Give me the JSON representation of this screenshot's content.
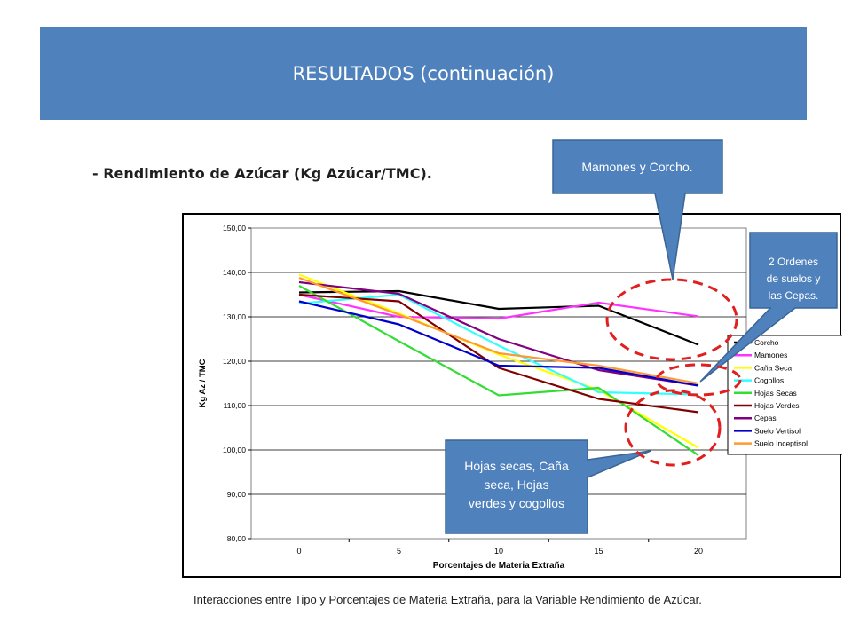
{
  "header": {
    "title": "RESULTADOS (continuación)"
  },
  "subtitle": "- Rendimiento de Azúcar (Kg Azúcar/TMC).",
  "caption": "Interacciones entre Tipo y Porcentajes de Materia Extraña, para la Variable Rendimiento de Azúcar.",
  "callouts": {
    "mamones": "Mamones y Corcho.",
    "ordenes": [
      "2 Ordenes",
      "de suelos y",
      "las Cepas."
    ],
    "hojas": [
      "Hojas secas, Caña",
      "seca, Hojas",
      "verdes y cogollos"
    ]
  },
  "colors": {
    "banner": "#4f81bd",
    "callout": "#4f81bd",
    "circle": "#e02020"
  },
  "chart_data": {
    "type": "line",
    "xlabel": "Porcentajes de Materia Extraña",
    "ylabel": "Kg Az / TMC",
    "x": [
      0,
      5,
      10,
      15,
      20
    ],
    "xticks": [
      "0",
      "5",
      "10",
      "15",
      "20"
    ],
    "ylim": [
      80,
      150
    ],
    "yticks": [
      "80,00",
      "90,00",
      "100,00",
      "110,00",
      "120,00",
      "130,00",
      "140,00",
      "150,00"
    ],
    "grid": true,
    "legend_position": "right",
    "series": [
      {
        "name": "Corcho",
        "color": "#000000",
        "values": [
          135.5,
          135.8,
          131.8,
          132.5,
          123.7
        ]
      },
      {
        "name": "Mamones",
        "color": "#ff33ff",
        "values": [
          135.0,
          130.0,
          129.6,
          133.2,
          130.1
        ]
      },
      {
        "name": "Caña Seca",
        "color": "#ffff00",
        "values": [
          139.5,
          130.8,
          121.5,
          113.5,
          100.5
        ]
      },
      {
        "name": "Cogollos",
        "color": "#33ffff",
        "values": [
          133.0,
          135.0,
          123.5,
          113.0,
          112.5
        ]
      },
      {
        "name": "Hojas Secas",
        "color": "#33dd33",
        "values": [
          137.0,
          124.5,
          112.3,
          114.0,
          98.8
        ]
      },
      {
        "name": "Hojas Verdes",
        "color": "#800000",
        "values": [
          135.0,
          133.5,
          118.5,
          111.5,
          108.5
        ]
      },
      {
        "name": "Cepas",
        "color": "#800080",
        "values": [
          137.8,
          135.2,
          125.0,
          118.0,
          114.5
        ]
      },
      {
        "name": "Suelo Vertisol",
        "color": "#0000cc",
        "values": [
          133.5,
          128.3,
          119.0,
          118.5,
          114.5
        ]
      },
      {
        "name": "Suelo Inceptisol",
        "color": "#ff9933",
        "values": [
          138.8,
          130.5,
          121.8,
          119.0,
          115.0
        ]
      }
    ]
  }
}
